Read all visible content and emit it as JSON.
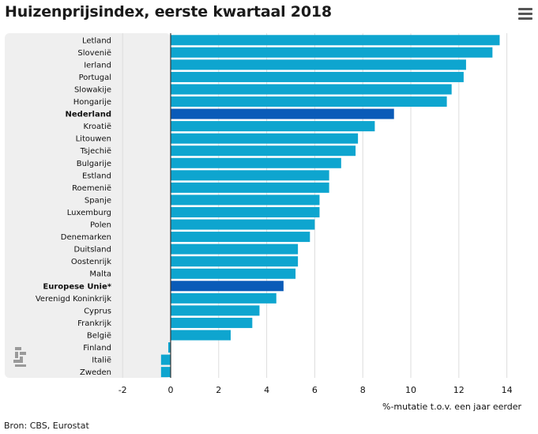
{
  "header": {
    "title": "Huizenprijsindex, eerste kwartaal 2018",
    "menu_icon": "hamburger-menu-icon"
  },
  "footer": {
    "source": "Bron: CBS, Eurostat"
  },
  "logo": {
    "name": "cbs-logo-icon",
    "text": "cbs"
  },
  "colors": {
    "bar": "#0ea5cf",
    "highlight": "#0a5bb8",
    "panel": "#efefef",
    "grid": "#dddddd",
    "zero": "#333333"
  },
  "chart_data": {
    "type": "bar",
    "orientation": "horizontal",
    "title": "Huizenprijsindex, eerste kwartaal 2018",
    "xlabel": "%-mutatie t.o.v. een jaar eerder",
    "xlim": [
      -2,
      14.5
    ],
    "ticks": [
      -2,
      0,
      2,
      4,
      6,
      8,
      10,
      12,
      14
    ],
    "categories": [
      "Letland",
      "Slovenië",
      "Ierland",
      "Portugal",
      "Slowakije",
      "Hongarije",
      "Nederland",
      "Kroatië",
      "Litouwen",
      "Tsjechië",
      "Bulgarije",
      "Estland",
      "Roemenië",
      "Spanje",
      "Luxemburg",
      "Polen",
      "Denemarken",
      "Duitsland",
      "Oostenrijk",
      "Malta",
      "Europese Unie*",
      "Verenigd Koninkrijk",
      "Cyprus",
      "Frankrijk",
      "België",
      "Finland",
      "Italië",
      "Zweden"
    ],
    "values": [
      13.7,
      13.4,
      12.3,
      12.2,
      11.7,
      11.5,
      9.3,
      8.5,
      7.8,
      7.7,
      7.1,
      6.6,
      6.6,
      6.2,
      6.2,
      6.0,
      5.8,
      5.3,
      5.3,
      5.2,
      4.7,
      4.4,
      3.7,
      3.4,
      2.5,
      -0.1,
      -0.4,
      -0.4
    ],
    "highlighted": [
      "Nederland",
      "Europese Unie*"
    ],
    "grid": true
  }
}
